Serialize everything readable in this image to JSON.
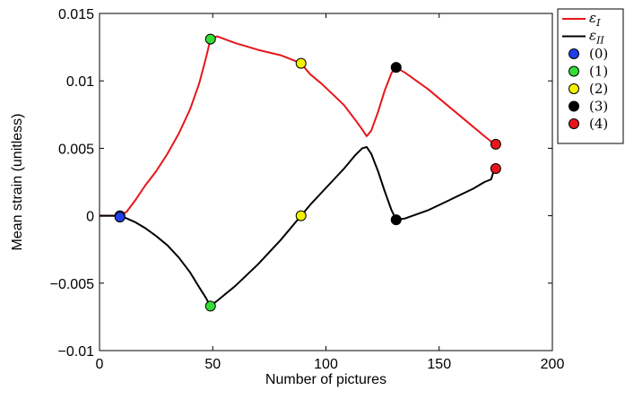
{
  "chart_data": {
    "type": "line",
    "xlabel": "Number of pictures",
    "ylabel": "Mean strain (unitless)",
    "xlim": [
      0,
      200
    ],
    "ylim": [
      -0.01,
      0.015
    ],
    "x_ticks": [
      0,
      50,
      100,
      150,
      200
    ],
    "x_tick_labels": [
      "0",
      "50",
      "100",
      "150",
      "200"
    ],
    "y_ticks": [
      -0.01,
      -0.005,
      0,
      0.005,
      0.01,
      0.015
    ],
    "y_tick_labels": [
      "−0.01",
      "−0.005",
      "0",
      "0.005",
      "0.01",
      "0.015"
    ],
    "grid": false,
    "legend_position": "outside-top-right",
    "series": [
      {
        "name": "ε_I",
        "color": "#e8161b",
        "x": [
          0,
          5,
          9,
          12,
          16,
          20,
          25,
          30,
          35,
          40,
          44,
          47,
          49,
          52,
          60,
          70,
          80,
          89,
          93,
          98,
          103,
          108,
          113,
          116,
          118,
          120,
          123,
          126,
          129,
          131,
          135,
          140,
          145,
          150,
          155,
          160,
          165,
          170,
          173,
          175
        ],
        "values": [
          0.0,
          0.0,
          0.0,
          0.0003,
          0.0012,
          0.0022,
          0.0033,
          0.0046,
          0.0061,
          0.0079,
          0.0098,
          0.0117,
          0.0131,
          0.0133,
          0.0128,
          0.0123,
          0.0119,
          0.0113,
          0.0105,
          0.0098,
          0.009,
          0.0082,
          0.0071,
          0.0064,
          0.0059,
          0.0063,
          0.0077,
          0.0093,
          0.0106,
          0.011,
          0.0106,
          0.01,
          0.0094,
          0.0087,
          0.008,
          0.0073,
          0.0066,
          0.0059,
          0.0055,
          0.0053
        ]
      },
      {
        "name": "ε_II",
        "color": "#000000",
        "x": [
          0,
          5,
          9,
          12,
          16,
          20,
          25,
          30,
          35,
          40,
          44,
          47,
          49,
          52,
          60,
          70,
          80,
          89,
          93,
          98,
          103,
          108,
          113,
          116,
          118,
          120,
          123,
          126,
          129,
          131,
          135,
          140,
          145,
          150,
          155,
          160,
          165,
          170,
          173,
          174,
          175
        ],
        "values": [
          0.0,
          0.0,
          0.0,
          -0.0002,
          -0.0005,
          -0.0009,
          -0.0015,
          -0.0022,
          -0.0031,
          -0.0042,
          -0.0053,
          -0.0061,
          -0.0067,
          -0.0063,
          -0.0052,
          -0.0036,
          -0.0018,
          0.0,
          0.0008,
          0.0017,
          0.0026,
          0.0035,
          0.0045,
          0.005,
          0.0051,
          0.0046,
          0.0033,
          0.0018,
          0.0004,
          -0.0003,
          -0.0002,
          0.0001,
          0.0004,
          0.0008,
          0.0012,
          0.0016,
          0.002,
          0.0025,
          0.0027,
          0.0033,
          0.0035
        ]
      }
    ],
    "markers": [
      {
        "name": "(0)",
        "color": "#1f3fe8",
        "points": [
          [
            9,
            0.0
          ],
          [
            9,
            -0.0001
          ]
        ]
      },
      {
        "name": "(1)",
        "color": "#33dd33",
        "points": [
          [
            49,
            0.0131
          ],
          [
            49,
            -0.0067
          ]
        ]
      },
      {
        "name": "(2)",
        "color": "#f2f200",
        "points": [
          [
            89,
            0.0113
          ],
          [
            89,
            0.0
          ]
        ]
      },
      {
        "name": "(3)",
        "color": "#000000",
        "points": [
          [
            131,
            0.011
          ],
          [
            131,
            -0.0003
          ]
        ]
      },
      {
        "name": "(4)",
        "color": "#e8161b",
        "points": [
          [
            175,
            0.0053
          ],
          [
            175,
            0.0035
          ]
        ]
      }
    ],
    "legend": [
      {
        "kind": "line",
        "color": "#e8161b",
        "base": "ε",
        "sub": "I"
      },
      {
        "kind": "line",
        "color": "#000000",
        "base": "ε",
        "sub": "II"
      },
      {
        "kind": "marker",
        "color": "#1f3fe8",
        "label": "(0)"
      },
      {
        "kind": "marker",
        "color": "#33dd33",
        "label": "(1)"
      },
      {
        "kind": "marker",
        "color": "#f2f200",
        "label": "(2)"
      },
      {
        "kind": "marker",
        "color": "#000000",
        "label": "(3)"
      },
      {
        "kind": "marker",
        "color": "#e8161b",
        "label": "(4)"
      }
    ]
  }
}
